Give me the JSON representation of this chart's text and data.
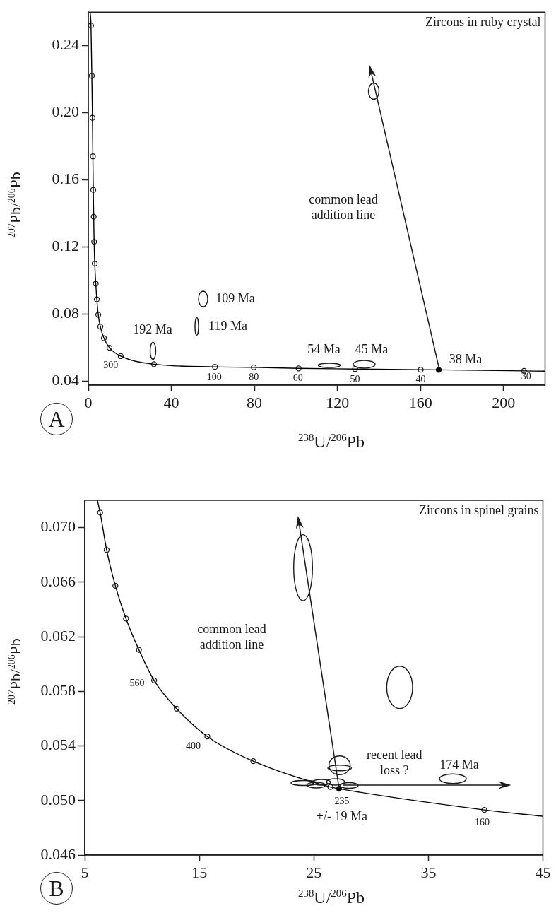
{
  "chart_data": [
    {
      "type": "scatter",
      "title": "Zircons in ruby crystal",
      "xlabel": "$^{238}$U/$^{206}$Pb",
      "ylabel": "$^{207}$Pb/$^{206}$Pb",
      "xlim": [
        0,
        220
      ],
      "ylim": [
        0.0375,
        0.26
      ],
      "xticks": [
        0,
        40,
        80,
        120,
        160,
        200
      ],
      "yticks": [
        0.04,
        0.08,
        0.12,
        0.16,
        {
          "value": 0.2,
          "label": "0.20"
        },
        0.24
      ],
      "grid": false,
      "legend": false,
      "series": [
        {
          "type": "line",
          "color": "#000000",
          "marker": "none",
          "x": [
            0.9,
            1.3,
            1.7,
            2.0,
            2.2,
            2.4,
            2.6,
            2.8,
            3.1,
            3.6,
            4.1,
            4.8,
            5.8,
            7.5,
            10.2,
            15.6,
            31.6,
            61,
            79.7,
            101.3,
            128.5,
            160.1,
            168.8,
            209.9,
            220
          ],
          "values": [
            0.26,
            0.252,
            0.222,
            0.197,
            0.174,
            0.154,
            0.138,
            0.123,
            0.11,
            0.098,
            0.0887,
            0.0795,
            0.0724,
            0.0655,
            0.0598,
            0.0548,
            0.05,
            0.0484,
            0.0481,
            0.0475,
            0.0471,
            0.0467,
            0.0466,
            0.046,
            0.0458
          ]
        },
        {
          "type": "scatter",
          "color": "#ffffff",
          "marker": "circle",
          "x": [
            1.3,
            1.7,
            2.0,
            2.2,
            2.4,
            2.6,
            2.8,
            3.1,
            3.6,
            4.1,
            4.8,
            5.8,
            7.5,
            10.2,
            15.6,
            31.6,
            61,
            79.7,
            101.3,
            128.5,
            160.1,
            209.9
          ],
          "values": [
            0.252,
            0.222,
            0.197,
            0.174,
            0.154,
            0.138,
            0.123,
            0.11,
            0.098,
            0.0887,
            0.0795,
            0.0724,
            0.0655,
            0.0598,
            0.0548,
            0.05,
            0.0484,
            0.0481,
            0.0475,
            0.0471,
            0.0467,
            0.046
          ]
        },
        {
          "type": "scatter",
          "color": "#000000",
          "marker": "circle",
          "x": [
            168.8
          ],
          "values": [
            0.0466
          ]
        }
      ],
      "annotations": [
        "A",
        {
          "text": "300",
          "x": 15.6,
          "y": 0.0548
        },
        {
          "text": "100",
          "x": 61,
          "y": 0.0484
        },
        {
          "text": "80",
          "x": 79.7,
          "y": 0.0481
        },
        {
          "text": "60",
          "x": 101.3,
          "y": 0.0475
        },
        {
          "text": "50",
          "x": 128.5,
          "y": 0.0471
        },
        {
          "text": "40",
          "x": 160.1,
          "y": 0.0467
        },
        {
          "text": "30",
          "x": 209.9,
          "y": 0.046
        },
        "192 Ma",
        "109 Ma",
        "119 Ma",
        "54 Ma",
        "45 Ma",
        {
          "text": "38 Ma",
          "x": 168.8,
          "y": 0.0466
        },
        "common lead addition line"
      ]
    },
    {
      "type": "scatter",
      "title": "Zircons in spinel grains",
      "xlabel": "$^{238}$U/$^{206}$Pb",
      "ylabel": "$^{207}$Pb/$^{206}$Pb",
      "xlim": [
        5,
        45
      ],
      "ylim": [
        0.046,
        0.072
      ],
      "xticks": [
        5,
        15,
        25,
        35,
        45
      ],
      "yticks": [
        0.046,
        {
          "value": 0.05,
          "label": "0.050"
        },
        0.054,
        0.058,
        0.062,
        0.066,
        {
          "value": 0.07,
          "label": "0.070"
        }
      ],
      "grid": false,
      "legend": false,
      "series": [
        {
          "type": "line",
          "color": "#000000",
          "marker": "none",
          "x": [
            6.1,
            6.34,
            6.91,
            7.67,
            8.6,
            9.73,
            11.05,
            13.02,
            15.7,
            19.71,
            26.44,
            27.2,
            39.88,
            45
          ],
          "values": [
            0.072,
            0.0711,
            0.06836,
            0.06574,
            0.06333,
            0.06104,
            0.0588,
            0.05673,
            0.05469,
            0.05288,
            0.05099,
            0.05086,
            0.04931,
            0.04884
          ]
        },
        {
          "type": "scatter",
          "color": "#ffffff",
          "marker": "circle",
          "x": [
            6.34,
            6.91,
            7.67,
            8.6,
            9.73,
            11.05,
            13.02,
            15.7,
            19.71,
            26.44,
            39.88
          ],
          "values": [
            0.0711,
            0.06836,
            0.06574,
            0.06333,
            0.06104,
            0.0588,
            0.05673,
            0.05469,
            0.05288,
            0.05099,
            0.04931
          ]
        },
        {
          "type": "scatter",
          "color": "#000000",
          "marker": "circle",
          "x": [
            27.2
          ],
          "values": [
            0.05086
          ]
        }
      ],
      "annotations": [
        "B",
        {
          "text": "560",
          "x": 11.05,
          "y": 0.0588
        },
        {
          "text": "400",
          "x": 15.7,
          "y": 0.05469
        },
        {
          "text": "235",
          "x": 27.2,
          "y": 0.05086
        },
        {
          "text": "+/- 19 Ma",
          "x": 27.2,
          "y": 0.05086
        },
        {
          "text": "160",
          "x": 39.88,
          "y": 0.04931
        },
        "174 Ma",
        "recent lead loss ?",
        "common lead addition line"
      ]
    }
  ]
}
